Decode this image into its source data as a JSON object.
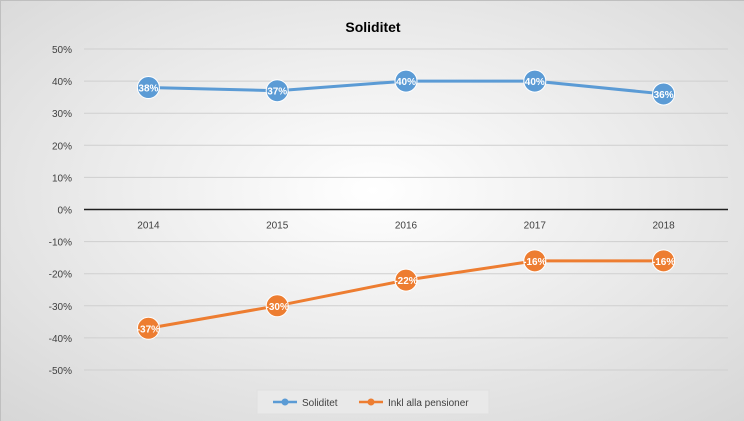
{
  "chart_data": {
    "type": "line",
    "title": "Soliditet",
    "xlabel": "",
    "ylabel": "",
    "categories": [
      "2014",
      "2015",
      "2016",
      "2017",
      "2018"
    ],
    "ylim": [
      -50,
      50
    ],
    "y_ticks": [
      {
        "value": 50,
        "label": "50%"
      },
      {
        "value": 40,
        "label": "40%"
      },
      {
        "value": 30,
        "label": "30%"
      },
      {
        "value": 20,
        "label": "20%"
      },
      {
        "value": 10,
        "label": "10%"
      },
      {
        "value": 0,
        "label": "0%"
      },
      {
        "value": -10,
        "label": "-10%"
      },
      {
        "value": -20,
        "label": "-20%"
      },
      {
        "value": -30,
        "label": "-30%"
      },
      {
        "value": -40,
        "label": "-40%"
      },
      {
        "value": -50,
        "label": "-50%"
      }
    ],
    "grid": true,
    "legend_position": "bottom",
    "series": [
      {
        "name": "Soliditet",
        "color": "#5b9bd5",
        "values": [
          38,
          37,
          40,
          40,
          36
        ],
        "labels": [
          "38%",
          "37%",
          "40%",
          "40%",
          "36%"
        ]
      },
      {
        "name": "Inkl alla pensioner",
        "color": "#ed7d31",
        "values": [
          -37,
          -30,
          -22,
          -16,
          -16
        ],
        "labels": [
          "-37%",
          "-30%",
          "-22%",
          "-16%",
          "-16%"
        ]
      }
    ],
    "background_gradient": [
      "#ffffff",
      "#d9d9d9"
    ]
  }
}
